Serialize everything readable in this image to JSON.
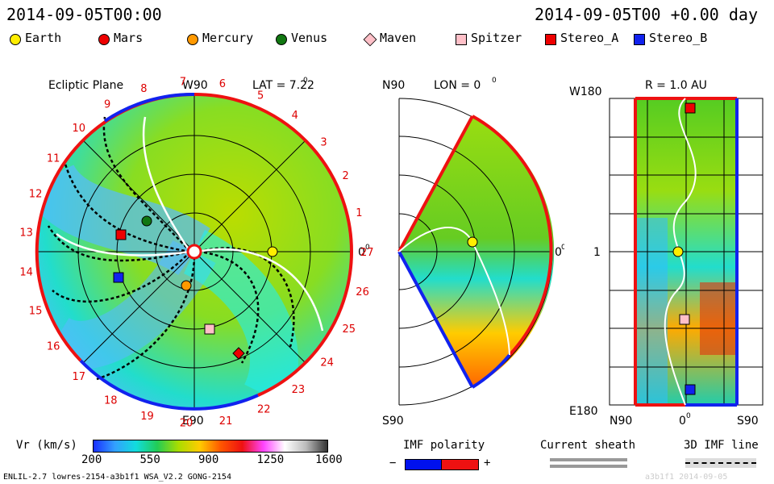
{
  "header": {
    "datetime": "2014-09-05T00:00",
    "rel_time": "2014-09-05T00 +0.00 day"
  },
  "legend": [
    {
      "name": "Earth",
      "color": "#ffee00",
      "shape": "circle"
    },
    {
      "name": "Mars",
      "color": "#ee0000",
      "shape": "circle"
    },
    {
      "name": "Mercury",
      "color": "#ff9900",
      "shape": "circle"
    },
    {
      "name": "Venus",
      "color": "#117711",
      "shape": "circle"
    },
    {
      "name": "Maven",
      "color": "#ffc0c8",
      "shape": "diamond"
    },
    {
      "name": "Spitzer",
      "color": "#ffc0c8",
      "shape": "square"
    },
    {
      "name": "Stereo_A",
      "color": "#ee0000",
      "shape": "square"
    },
    {
      "name": "Stereo_B",
      "color": "#1122ee",
      "shape": "square"
    }
  ],
  "panel1": {
    "title": "Ecliptic Plane",
    "lat": "LAT = 7.22",
    "deg": "0",
    "top_label": "W90",
    "bottom_label": "E90",
    "right_label": "0",
    "right_deg": "0",
    "carrington_labels": [
      "1",
      "2",
      "3",
      "4",
      "5",
      "6",
      "7",
      "8",
      "9",
      "10",
      "11",
      "12",
      "13",
      "14",
      "15",
      "16",
      "17",
      "18",
      "19",
      "20",
      "21",
      "22",
      "23",
      "24",
      "25",
      "26",
      "27"
    ]
  },
  "panel2": {
    "title": "LON = 0",
    "deg": "0",
    "top_label": "N90",
    "bottom_label": "S90",
    "right_label": "0",
    "right_deg": "0"
  },
  "panel3": {
    "title": "R = 1.0 AU",
    "top_label": "W180",
    "mid_label": "1",
    "bottom_label": "E180",
    "x_left": "N90",
    "x_mid": "0",
    "x_mid_deg": "0",
    "x_right": "S90"
  },
  "colorbar": {
    "label": "Vr (km/s)",
    "ticks": [
      "200",
      "550",
      "900",
      "1250",
      "1600"
    ],
    "colors": [
      "#1a2fff",
      "#33a0ff",
      "#11dddd",
      "#22cc55",
      "#aadd00",
      "#ffcc00",
      "#ff5500",
      "#ee1111",
      "#ff44ff",
      "#ffffff",
      "#bbbbbb",
      "#333333"
    ]
  },
  "imf": {
    "label": "IMF polarity",
    "minus": "−",
    "plus": "+"
  },
  "sheath": {
    "label": "Current sheath"
  },
  "imf3d": {
    "label": "3D IMF line"
  },
  "footer": {
    "left": "ENLIL-2.7 lowres-2154-a3b1f1 WSA_V2.2 GONG-2154",
    "right": "a3b1f1  2014-09-05"
  }
}
